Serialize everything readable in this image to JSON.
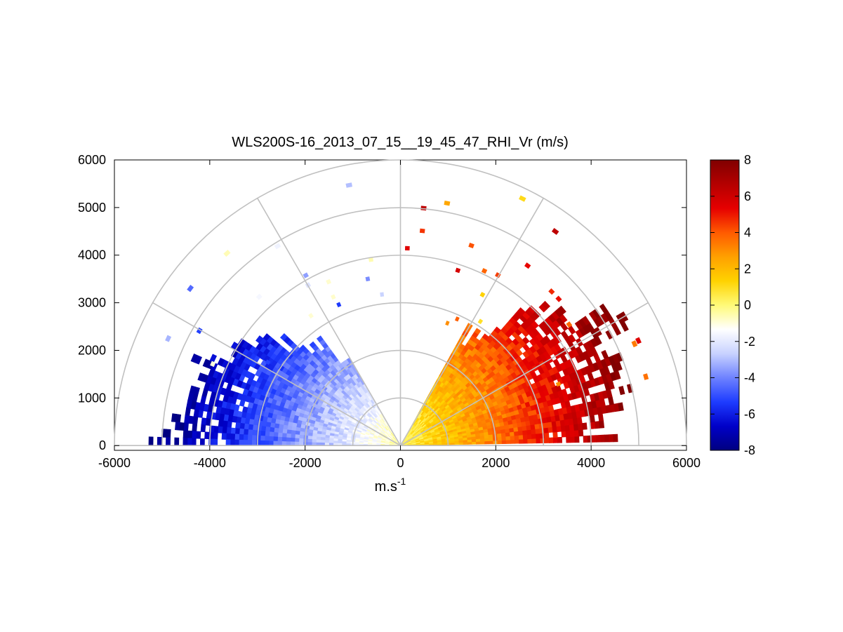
{
  "chart_data": {
    "type": "heatmap",
    "subtype": "polar-sector RHI scan",
    "title": "WLS200S-16_2013_07_15__19_45_47_RHI_Vr (m/s)",
    "xlabel": "m.s",
    "xlabel_superscript": "-1",
    "ylabel": "",
    "xlim": [
      -6000,
      6000
    ],
    "ylim": [
      -100,
      6000
    ],
    "x_ticks": [
      -6000,
      -4000,
      -2000,
      0,
      2000,
      4000,
      6000
    ],
    "x_tick_labels": [
      "-6000",
      "-4000",
      "-2000",
      "0",
      "2000",
      "4000",
      "6000"
    ],
    "y_ticks": [
      0,
      1000,
      2000,
      3000,
      4000,
      5000,
      6000
    ],
    "y_tick_labels": [
      "0",
      "1000",
      "2000",
      "3000",
      "4000",
      "5000",
      "6000"
    ],
    "grid": true,
    "range_rings_m": [
      1000,
      2000,
      3000,
      4000,
      5000,
      6000
    ],
    "radial_lines_deg": [
      0,
      30,
      60,
      90,
      120,
      150,
      180
    ],
    "colorbar": {
      "min": -8,
      "max": 8,
      "ticks": [
        -8,
        -6,
        -4,
        -2,
        0,
        2,
        4,
        6,
        8
      ],
      "tick_labels": [
        "-8",
        "-6",
        "-4",
        "-2",
        "0",
        "2",
        "4",
        "6",
        "8"
      ],
      "colors": [
        "#000080",
        "#0000c8",
        "#1e3cff",
        "#6e82ff",
        "#c8d2ff",
        "#ffffff",
        "#fffa78",
        "#ffd200",
        "#ffa000",
        "#ff5a00",
        "#e60000",
        "#b40000",
        "#800000"
      ]
    },
    "field": {
      "variable": "Vr",
      "units": "m/s",
      "left_sector": {
        "azimuth_deg": [
          120,
          180
        ],
        "max_range_m": 5600,
        "vr_range_m_s": [
          -8,
          0
        ]
      },
      "right_sector": {
        "azimuth_deg": [
          0,
          60
        ],
        "max_range_m": 5800,
        "vr_range_m_s": [
          0,
          8
        ]
      }
    }
  }
}
